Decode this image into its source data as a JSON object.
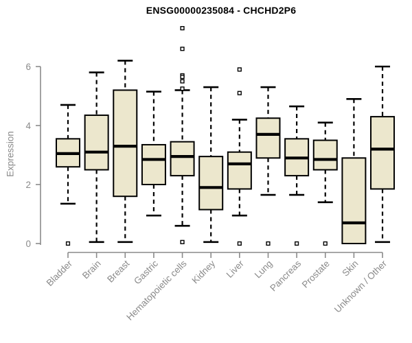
{
  "chart_data": {
    "type": "boxplot",
    "title": "ENSG00000235084 - CHCHD2P6",
    "xlabel": "",
    "ylabel": "Expression",
    "ylim": [
      0,
      7.4
    ],
    "yticks": [
      0,
      2,
      4,
      6
    ],
    "grid": false,
    "legend": "none",
    "categories": [
      "Bladder",
      "Brain",
      "Breast",
      "Gastric",
      "Hematopoietic cells",
      "Kidney",
      "Liver",
      "Lung",
      "Pancreas",
      "Prostate",
      "Skin",
      "Unknown / Other"
    ],
    "series": [
      {
        "name": "Bladder",
        "whisker_low": 1.35,
        "q1": 2.6,
        "median": 3.05,
        "q3": 3.55,
        "whisker_high": 4.7,
        "outliers": [
          0
        ]
      },
      {
        "name": "Brain",
        "whisker_low": 0.05,
        "q1": 2.5,
        "median": 3.1,
        "q3": 4.35,
        "whisker_high": 5.8,
        "outliers": []
      },
      {
        "name": "Breast",
        "whisker_low": 0.05,
        "q1": 1.6,
        "median": 3.3,
        "q3": 5.2,
        "whisker_high": 6.2,
        "outliers": []
      },
      {
        "name": "Gastric",
        "whisker_low": 0.95,
        "q1": 2.0,
        "median": 2.85,
        "q3": 3.35,
        "whisker_high": 5.15,
        "outliers": []
      },
      {
        "name": "Hematopoietic cells",
        "whisker_low": 0.6,
        "q1": 2.3,
        "median": 2.95,
        "q3": 3.45,
        "whisker_high": 5.2,
        "outliers": [
          7.3,
          6.6,
          5.7,
          5.65,
          5.5,
          5.25,
          0.05
        ]
      },
      {
        "name": "Kidney",
        "whisker_low": 0.05,
        "q1": 1.15,
        "median": 1.9,
        "q3": 2.95,
        "whisker_high": 5.3,
        "outliers": []
      },
      {
        "name": "Liver",
        "whisker_low": 0.95,
        "q1": 1.85,
        "median": 2.7,
        "q3": 3.1,
        "whisker_high": 4.2,
        "outliers": [
          5.9,
          5.1,
          0
        ]
      },
      {
        "name": "Lung",
        "whisker_low": 1.65,
        "q1": 2.9,
        "median": 3.7,
        "q3": 4.25,
        "whisker_high": 5.3,
        "outliers": [
          0
        ]
      },
      {
        "name": "Pancreas",
        "whisker_low": 1.65,
        "q1": 2.3,
        "median": 2.9,
        "q3": 3.55,
        "whisker_high": 4.65,
        "outliers": [
          0
        ]
      },
      {
        "name": "Prostate",
        "whisker_low": 1.4,
        "q1": 2.5,
        "median": 2.85,
        "q3": 3.5,
        "whisker_high": 4.1,
        "outliers": [
          0
        ]
      },
      {
        "name": "Skin",
        "whisker_low": 0.0,
        "q1": 0.0,
        "median": 0.7,
        "q3": 2.9,
        "whisker_high": 4.9,
        "outliers": []
      },
      {
        "name": "Unknown / Other",
        "whisker_low": 0.05,
        "q1": 1.85,
        "median": 3.2,
        "q3": 4.3,
        "whisker_high": 6.0,
        "outliers": []
      }
    ],
    "colors": {
      "box_fill": "#ece7cd",
      "box_border": "#000000",
      "median": "#000000",
      "whisker": "#000000",
      "outlier": "#000000",
      "axis": "#8a8a8a",
      "tick_label": "#8a8a8a",
      "title": "#000000",
      "background": "#ffffff"
    }
  }
}
